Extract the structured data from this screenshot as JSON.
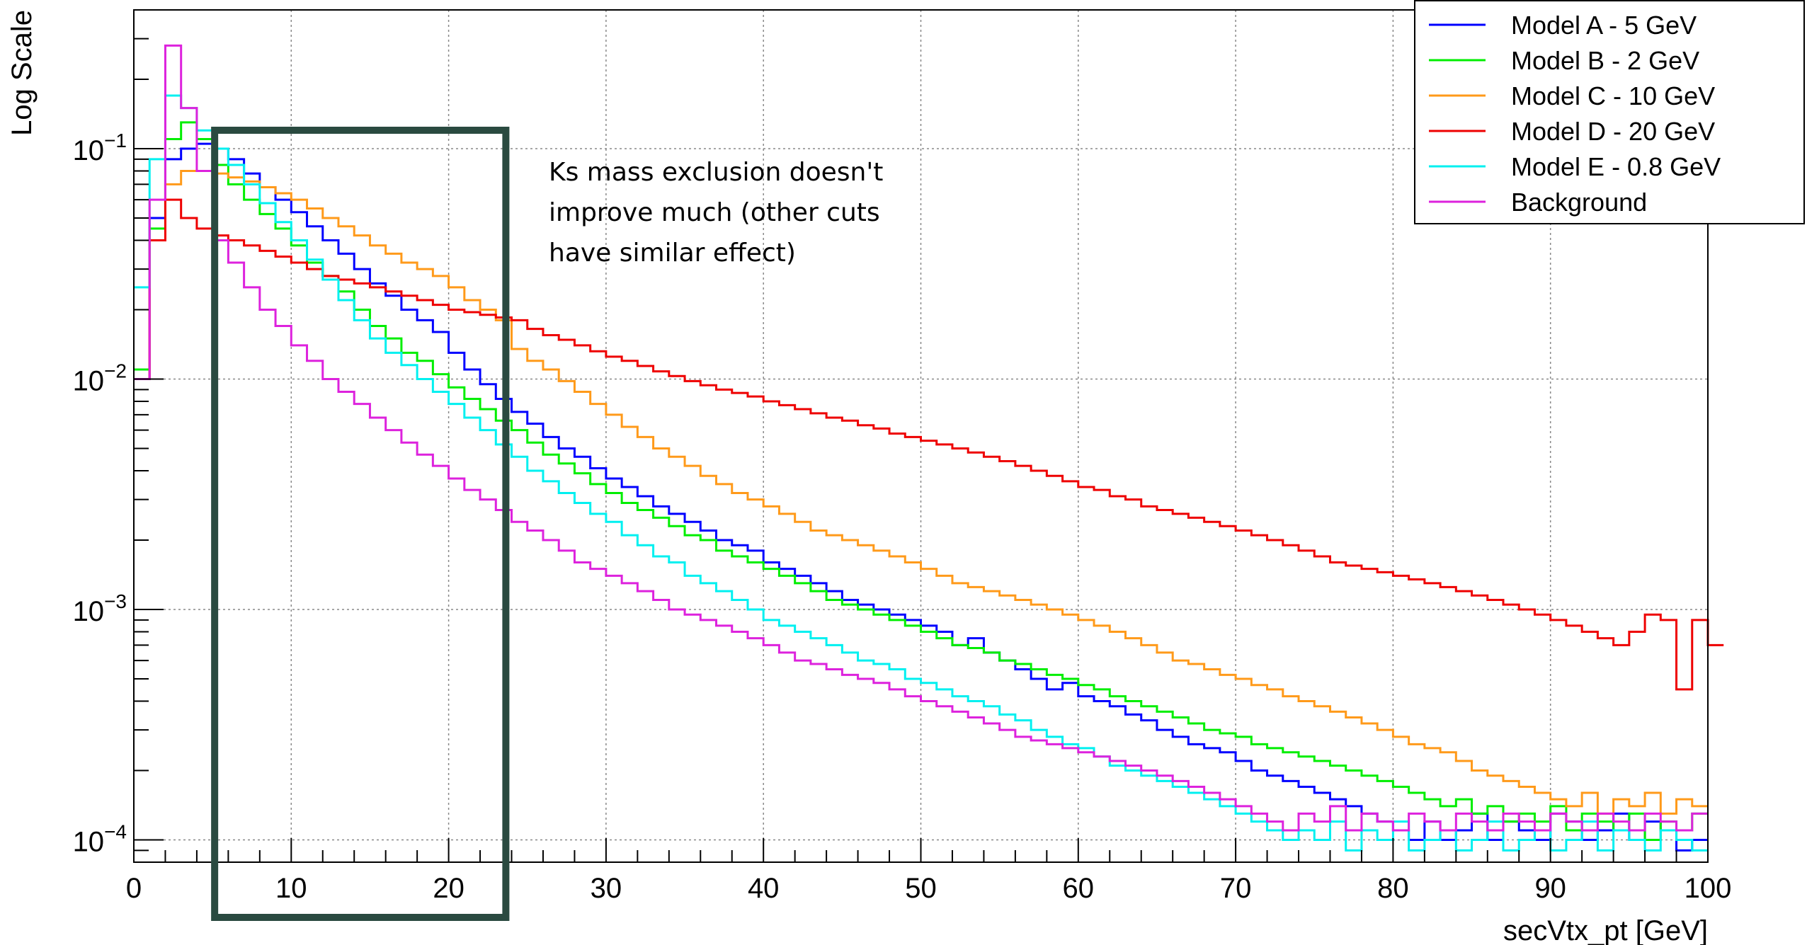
{
  "chart_data": {
    "type": "line",
    "style": "step-histogram",
    "xlabel": "secVtx_pt [GeV]",
    "ylabel": "Log Scale",
    "xlim": [
      0,
      100
    ],
    "ylim": [
      8e-05,
      0.4
    ],
    "yscale": "log",
    "x_ticks": [
      "0",
      "10",
      "20",
      "30",
      "40",
      "50",
      "60",
      "70",
      "80",
      "90",
      "100"
    ],
    "y_ticks": [
      {
        "base": "10",
        "exp": "−4",
        "value": 0.0001
      },
      {
        "base": "10",
        "exp": "−3",
        "value": 0.001
      },
      {
        "base": "10",
        "exp": "−2",
        "value": 0.01
      },
      {
        "base": "10",
        "exp": "−1",
        "value": 0.1
      }
    ],
    "grid": true,
    "legend_position": "top-right",
    "bins": {
      "start": 0,
      "width": 1,
      "count": 100
    },
    "annotation": {
      "lines": [
        "Ks mass exclusion doesn't",
        "improve much (other cuts",
        "have similar effect)"
      ],
      "box_x_range": [
        5,
        23.5
      ]
    },
    "series": [
      {
        "name": "Model A - 5 GeV",
        "color": "#0000ff",
        "values": [
          0.01,
          0.05,
          0.09,
          0.1,
          0.105,
          0.1,
          0.09,
          0.078,
          0.068,
          0.06,
          0.053,
          0.046,
          0.04,
          0.035,
          0.03,
          0.026,
          0.023,
          0.02,
          0.018,
          0.016,
          0.013,
          0.011,
          0.0095,
          0.0082,
          0.0072,
          0.0064,
          0.0056,
          0.005,
          0.0046,
          0.0041,
          0.0037,
          0.0034,
          0.0031,
          0.0028,
          0.0026,
          0.0024,
          0.0022,
          0.002,
          0.0019,
          0.0018,
          0.0016,
          0.0015,
          0.0014,
          0.0013,
          0.0012,
          0.0011,
          0.00105,
          0.001,
          0.00095,
          0.0009,
          0.00085,
          0.0008,
          0.0007,
          0.00075,
          0.00065,
          0.0006,
          0.00055,
          0.0005,
          0.00045,
          0.00048,
          0.00042,
          0.0004,
          0.00038,
          0.00035,
          0.00033,
          0.0003,
          0.00028,
          0.00026,
          0.00025,
          0.00024,
          0.00022,
          0.0002,
          0.00019,
          0.00018,
          0.00017,
          0.00016,
          0.00015,
          0.00014,
          0.00013,
          0.00012,
          0.00011,
          0.0001,
          0.00012,
          0.0001,
          0.00011,
          0.00013,
          0.0001,
          0.00012,
          0.00011,
          0.0001,
          0.00013,
          0.00012,
          0.0001,
          0.00011,
          0.00013,
          0.0001,
          0.00012,
          0.00011,
          9e-05,
          0.0001
        ]
      },
      {
        "name": "Model B - 2 GeV",
        "color": "#00ee00",
        "values": [
          0.011,
          0.045,
          0.11,
          0.13,
          0.11,
          0.085,
          0.07,
          0.06,
          0.052,
          0.045,
          0.038,
          0.032,
          0.028,
          0.024,
          0.02,
          0.017,
          0.015,
          0.013,
          0.012,
          0.0105,
          0.0092,
          0.0082,
          0.0074,
          0.0066,
          0.006,
          0.0053,
          0.0047,
          0.0043,
          0.0039,
          0.0035,
          0.0032,
          0.0029,
          0.0027,
          0.0025,
          0.0023,
          0.0021,
          0.002,
          0.0018,
          0.0017,
          0.0016,
          0.0015,
          0.0014,
          0.0013,
          0.0012,
          0.0011,
          0.00105,
          0.001,
          0.00095,
          0.0009,
          0.00085,
          0.0008,
          0.00075,
          0.0007,
          0.00068,
          0.00065,
          0.0006,
          0.00058,
          0.00055,
          0.00052,
          0.0005,
          0.00047,
          0.00045,
          0.00042,
          0.0004,
          0.00038,
          0.00036,
          0.00034,
          0.00032,
          0.0003,
          0.00029,
          0.00028,
          0.00026,
          0.00025,
          0.00024,
          0.00023,
          0.00022,
          0.00021,
          0.0002,
          0.00019,
          0.00018,
          0.00017,
          0.00016,
          0.00015,
          0.00014,
          0.00015,
          0.00013,
          0.00014,
          0.00012,
          0.00013,
          0.00012,
          0.00014,
          0.00011,
          0.00013,
          0.00012,
          0.00011,
          0.00013,
          0.0001,
          0.00012,
          0.00011,
          0.00013
        ]
      },
      {
        "name": "Model C - 10 GeV",
        "color": "#ff9a1a",
        "values": [
          0.01,
          0.04,
          0.07,
          0.08,
          0.08,
          0.078,
          0.075,
          0.072,
          0.068,
          0.064,
          0.06,
          0.055,
          0.05,
          0.046,
          0.042,
          0.038,
          0.035,
          0.032,
          0.03,
          0.028,
          0.025,
          0.022,
          0.02,
          0.018,
          0.0135,
          0.012,
          0.011,
          0.0098,
          0.0088,
          0.0078,
          0.007,
          0.0062,
          0.0056,
          0.005,
          0.0046,
          0.0042,
          0.0038,
          0.0035,
          0.0032,
          0.003,
          0.0028,
          0.0026,
          0.0024,
          0.0022,
          0.0021,
          0.002,
          0.0019,
          0.0018,
          0.0017,
          0.0016,
          0.0015,
          0.0014,
          0.0013,
          0.00125,
          0.0012,
          0.00115,
          0.0011,
          0.00105,
          0.001,
          0.00095,
          0.0009,
          0.00085,
          0.0008,
          0.00075,
          0.0007,
          0.00065,
          0.0006,
          0.00058,
          0.00055,
          0.00052,
          0.0005,
          0.00047,
          0.00045,
          0.00042,
          0.0004,
          0.00038,
          0.00036,
          0.00034,
          0.00032,
          0.0003,
          0.00028,
          0.00026,
          0.00025,
          0.00024,
          0.00022,
          0.0002,
          0.00019,
          0.00018,
          0.00017,
          0.00016,
          0.00015,
          0.00014,
          0.00016,
          0.00013,
          0.00015,
          0.00014,
          0.00016,
          0.00013,
          0.00015,
          0.00014
        ]
      },
      {
        "name": "Model D - 20 GeV",
        "color": "#ee0000",
        "values": [
          0.01,
          0.04,
          0.06,
          0.05,
          0.045,
          0.042,
          0.04,
          0.038,
          0.036,
          0.034,
          0.032,
          0.03,
          0.028,
          0.027,
          0.026,
          0.025,
          0.024,
          0.023,
          0.022,
          0.021,
          0.02,
          0.0195,
          0.019,
          0.0185,
          0.018,
          0.0165,
          0.0155,
          0.0148,
          0.014,
          0.0132,
          0.0125,
          0.012,
          0.0114,
          0.0108,
          0.0103,
          0.0098,
          0.0094,
          0.009,
          0.0087,
          0.0084,
          0.008,
          0.0077,
          0.0074,
          0.0071,
          0.0068,
          0.0066,
          0.0063,
          0.0061,
          0.0058,
          0.0056,
          0.0054,
          0.0052,
          0.005,
          0.0048,
          0.0046,
          0.0044,
          0.0042,
          0.004,
          0.0038,
          0.0036,
          0.0034,
          0.0033,
          0.0031,
          0.003,
          0.0028,
          0.0027,
          0.0026,
          0.0025,
          0.0024,
          0.0023,
          0.0022,
          0.0021,
          0.002,
          0.0019,
          0.0018,
          0.0017,
          0.0016,
          0.00155,
          0.0015,
          0.00145,
          0.0014,
          0.00135,
          0.0013,
          0.00125,
          0.0012,
          0.00115,
          0.0011,
          0.00105,
          0.001,
          0.00095,
          0.0009,
          0.00085,
          0.0008,
          0.00075,
          0.0007,
          0.0008,
          0.00095,
          0.0009,
          0.00045,
          0.0009,
          0.0007
        ]
      },
      {
        "name": "Model E - 0.8 GeV",
        "color": "#00f0f0",
        "values": [
          0.025,
          0.09,
          0.17,
          0.15,
          0.12,
          0.1,
          0.085,
          0.07,
          0.058,
          0.048,
          0.04,
          0.033,
          0.027,
          0.022,
          0.018,
          0.015,
          0.013,
          0.0115,
          0.01,
          0.0088,
          0.0078,
          0.0068,
          0.006,
          0.0052,
          0.0046,
          0.004,
          0.0036,
          0.0032,
          0.0029,
          0.0026,
          0.0024,
          0.0021,
          0.0019,
          0.0017,
          0.0016,
          0.0014,
          0.0013,
          0.0012,
          0.0011,
          0.001,
          0.0009,
          0.00085,
          0.0008,
          0.00075,
          0.0007,
          0.00065,
          0.0006,
          0.00058,
          0.00055,
          0.0005,
          0.00048,
          0.00045,
          0.00042,
          0.0004,
          0.00038,
          0.00035,
          0.00033,
          0.0003,
          0.00028,
          0.00026,
          0.00025,
          0.00023,
          0.00021,
          0.0002,
          0.00019,
          0.00018,
          0.00017,
          0.00016,
          0.00015,
          0.00014,
          0.00013,
          0.00012,
          0.00011,
          0.0001,
          0.00011,
          0.0001,
          0.00012,
          9e-05,
          0.00011,
          0.0001,
          0.00012,
          9e-05,
          0.0001,
          0.00011,
          9e-05,
          0.0001,
          0.00012,
          9e-05,
          0.0001,
          0.00011,
          9e-05,
          0.0001,
          0.00012,
          9e-05,
          0.00011,
          0.0001,
          9e-05,
          0.00011,
          0.0001,
          9e-05
        ]
      },
      {
        "name": "Background",
        "color": "#dd22dd",
        "values": [
          0.01,
          0.06,
          0.28,
          0.15,
          0.08,
          0.04,
          0.032,
          0.025,
          0.02,
          0.017,
          0.014,
          0.012,
          0.01,
          0.0088,
          0.0078,
          0.0068,
          0.006,
          0.0053,
          0.0047,
          0.0042,
          0.0037,
          0.0033,
          0.003,
          0.0027,
          0.0024,
          0.0022,
          0.002,
          0.0018,
          0.0016,
          0.0015,
          0.0014,
          0.0013,
          0.0012,
          0.0011,
          0.001,
          0.00095,
          0.0009,
          0.00085,
          0.0008,
          0.00075,
          0.0007,
          0.00065,
          0.0006,
          0.00058,
          0.00055,
          0.00052,
          0.0005,
          0.00048,
          0.00045,
          0.00042,
          0.0004,
          0.00038,
          0.00036,
          0.00034,
          0.00032,
          0.0003,
          0.00028,
          0.00027,
          0.00026,
          0.00025,
          0.00024,
          0.00023,
          0.00022,
          0.00021,
          0.0002,
          0.00019,
          0.00018,
          0.00017,
          0.00016,
          0.00015,
          0.00014,
          0.00013,
          0.00012,
          0.00011,
          0.00013,
          0.00012,
          0.00014,
          0.00011,
          0.00013,
          0.00012,
          0.00011,
          0.00013,
          0.00012,
          0.00011,
          0.00013,
          0.00012,
          0.00011,
          0.00013,
          0.00012,
          0.00011,
          0.00013,
          0.00012,
          0.00011,
          0.00013,
          0.00012,
          0.00011,
          0.00013,
          0.00012,
          0.00011,
          0.00013
        ]
      }
    ]
  }
}
